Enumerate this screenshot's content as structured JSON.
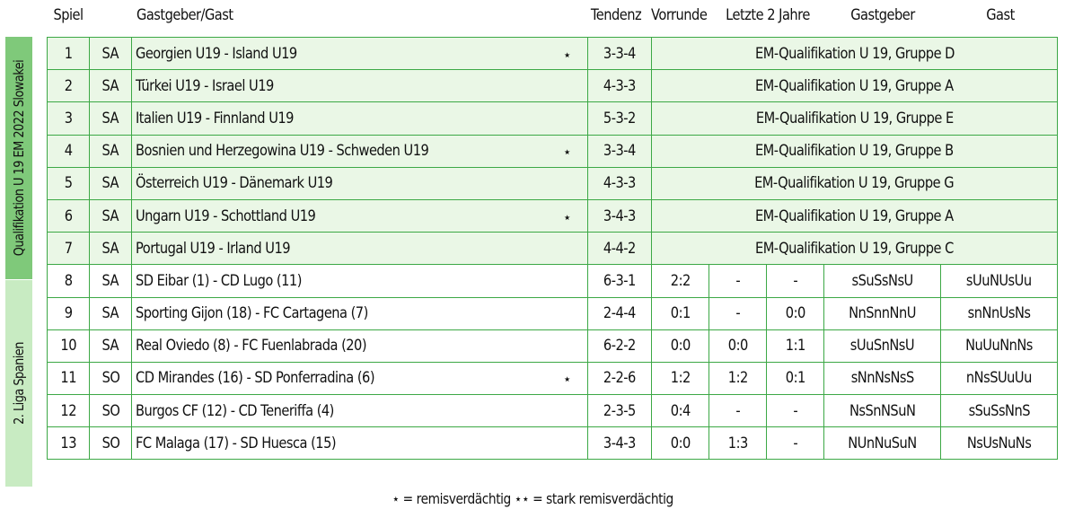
{
  "header": {
    "spiel": "Spiel",
    "match": "Gastgeber/Gast",
    "tendenz": "Tendenz",
    "vorrunde": "Vorrunde",
    "letzte": "Letzte 2 Jahre",
    "gastgeber": "Gastgeber",
    "gast": "Gast"
  },
  "groups": {
    "qualifikation": "Qualifikation U 19 EM 2022 Slowakei",
    "liga": "2. Liga Spanien"
  },
  "rows": [
    {
      "nr": "1",
      "tag": "SA",
      "match": "Georgien U19 - Island U19",
      "star": "⋆",
      "tendenz": "3-3-4",
      "info": "EM-Qualifikation U 19, Gruppe D"
    },
    {
      "nr": "2",
      "tag": "SA",
      "match": "Türkei U19 - Israel U19",
      "star": "",
      "tendenz": "4-3-3",
      "info": "EM-Qualifikation U 19, Gruppe A"
    },
    {
      "nr": "3",
      "tag": "SA",
      "match": "Italien U19 - Finnland U19",
      "star": "",
      "tendenz": "5-3-2",
      "info": "EM-Qualifikation U 19, Gruppe E"
    },
    {
      "nr": "4",
      "tag": "SA",
      "match": "Bosnien und Herzegowina U19 - Schweden U19",
      "star": "⋆",
      "tendenz": "3-3-4",
      "info": "EM-Qualifikation U 19, Gruppe B"
    },
    {
      "nr": "5",
      "tag": "SA",
      "match": "Österreich U19 - Dänemark U19",
      "star": "",
      "tendenz": "4-3-3",
      "info": "EM-Qualifikation U 19, Gruppe G"
    },
    {
      "nr": "6",
      "tag": "SA",
      "match": "Ungarn U19 - Schottland U19",
      "star": "⋆",
      "tendenz": "3-4-3",
      "info": "EM-Qualifikation U 19, Gruppe A"
    },
    {
      "nr": "7",
      "tag": "SA",
      "match": "Portugal U19 - Irland U19",
      "star": "",
      "tendenz": "4-4-2",
      "info": "EM-Qualifikation U 19, Gruppe C"
    },
    {
      "nr": "8",
      "tag": "SA",
      "match": "SD Eibar (1) - CD Lugo (11)",
      "star": "",
      "tendenz": "6-3-1",
      "vorrunde": "2:2",
      "l1": "-",
      "l2": "-",
      "gastgeber": "sSuSsNsU",
      "gast": "sUuNUsUu"
    },
    {
      "nr": "9",
      "tag": "SA",
      "match": "Sporting Gijon (18) - FC Cartagena (7)",
      "star": "",
      "tendenz": "2-4-4",
      "vorrunde": "0:1",
      "l1": "-",
      "l2": "0:0",
      "gastgeber": "NnSnnNnU",
      "gast": "snNnUsNs"
    },
    {
      "nr": "10",
      "tag": "SA",
      "match": "Real Oviedo (8) - FC Fuenlabrada (20)",
      "star": "",
      "tendenz": "6-2-2",
      "vorrunde": "0:0",
      "l1": "0:0",
      "l2": "1:1",
      "gastgeber": "sUuSnNsU",
      "gast": "NuUuNnNs"
    },
    {
      "nr": "11",
      "tag": "SO",
      "match": "CD Mirandes (16) - SD Ponferradina (6)",
      "star": "⋆",
      "tendenz": "2-2-6",
      "vorrunde": "1:2",
      "l1": "1:2",
      "l2": "0:1",
      "gastgeber": "sNnNsNsS",
      "gast": "nNsSUuUu"
    },
    {
      "nr": "12",
      "tag": "SO",
      "match": "Burgos CF (12) - CD Teneriffa (4)",
      "star": "",
      "tendenz": "2-3-5",
      "vorrunde": "0:4",
      "l1": "-",
      "l2": "-",
      "gastgeber": "NsSnNSuN",
      "gast": "sSuSsNnS"
    },
    {
      "nr": "13",
      "tag": "SO",
      "match": "FC Malaga (17) - SD Huesca (15)",
      "star": "",
      "tendenz": "3-4-3",
      "vorrunde": "0:0",
      "l1": "1:3",
      "l2": "-",
      "gastgeber": "NUnNuSuN",
      "gast": "NsUsNuNs"
    }
  ],
  "footer": "⋆ = remisverdächtig ⋆⋆ = stark remisverdächtig",
  "colors": {
    "border": "#3ca845",
    "qual_row_bg": "#eaf7e6",
    "qual_side": "#7fc97a",
    "liga_side": "#c8ebc2"
  }
}
